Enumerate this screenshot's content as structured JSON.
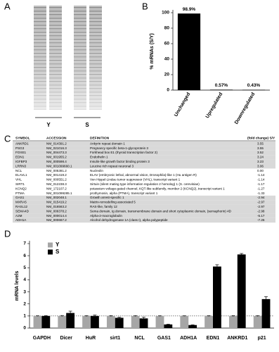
{
  "panel_labels": [
    "A",
    "B",
    "C",
    "D"
  ],
  "gel": {
    "lanes": [
      "Y",
      "S"
    ]
  },
  "chart_data": [
    {
      "type": "bar",
      "y_label": "% mRNAs (S/Y)",
      "categories": [
        "Unchanged",
        "Upregulated",
        "Downregulated"
      ],
      "values": [
        98.9,
        0.57,
        0.43
      ],
      "value_labels": [
        "98.9%",
        "0.57%",
        "0.43%"
      ],
      "color": "#000000",
      "ylim": [
        0,
        100
      ],
      "yticks": [
        0,
        20,
        40,
        60,
        80,
        100
      ]
    },
    {
      "type": "grouped_bar",
      "y_label": "mRNA levels",
      "categories": [
        "GAPDH",
        "Dicer",
        "HuR",
        "sirt1",
        "NCL",
        "GAS1",
        "ADH1A",
        "EDN1",
        "ANKRD1",
        "p21"
      ],
      "series": [
        {
          "name": "Y",
          "color": "#a6a6a6",
          "values": [
            1,
            1,
            1,
            1,
            1,
            1,
            1,
            1,
            1,
            1
          ],
          "errors": [
            0.02,
            0.04,
            0.03,
            0.03,
            0.03,
            0.02,
            0.02,
            0.03,
            0.03,
            0.03
          ]
        },
        {
          "name": "S",
          "color": "#000000",
          "values": [
            1.0,
            1.25,
            1.0,
            0.85,
            0.8,
            0.3,
            0.25,
            5.1,
            6.1,
            2.4
          ],
          "errors": [
            0.03,
            0.15,
            0.08,
            0.05,
            0.1,
            0.02,
            0.02,
            0.15,
            0.08,
            0.2
          ]
        }
      ],
      "ylim": [
        0,
        7
      ],
      "yticks": [
        0,
        1,
        2,
        3,
        4,
        5,
        6,
        7
      ],
      "reference_line": 1,
      "legend": "top-left"
    }
  ],
  "table": {
    "columns": [
      "SYMBOL",
      "ACCESSION",
      "DEFINITION",
      "(fold change) S/Y"
    ],
    "rows": [
      [
        "ANKRD1",
        "NM_014391.2",
        "Ankyrin repeat domain 1",
        "3.55"
      ],
      [
        "PSG3",
        "NM_021016.3",
        "Pregnancy specific beta-1-glycoprotein 3",
        "3.55"
      ],
      [
        "FOXE1",
        "NM_004473.3",
        "Forkhead box E1 (thyroid transcription factor 2)",
        "3.52"
      ],
      [
        "EDN1",
        "NM_001955.2",
        "Endothelin 1",
        "3.24"
      ],
      [
        "IGFBP3",
        "NM_000598.4",
        "Insulin-like growth factor binding protein 3",
        "3.23"
      ],
      [
        "LRRN3",
        "NM_001099660.1",
        "Leucine rich repeat neuronal 3",
        "3.06"
      ],
      [
        "NCL",
        "NM_005381.2",
        "Nucleolin",
        "0.00"
      ],
      [
        "ELAVL1",
        "NM_001419.2",
        "ELAV (embryonic lethal, abnormal vision, Drosophila)-like 1 (Hu antigen R)",
        "-1.14"
      ],
      [
        "VHL",
        "NM_000551.2",
        "Von Hippel-Lindau tumor suppressor (VHL), transcript variant 1",
        "-1.14"
      ],
      [
        "SIRT1",
        "NM_012238.3",
        "Sirtuin (silent mating type information regulation 2 homolog) 1 (S. cerevisiae)",
        "-1.17"
      ],
      [
        "KCNQ2",
        "NM_172107.2",
        "potassium voltage-gated channel, KQT-like subfamily, member 2 (KCNQ2), transcript variant 1",
        "-1.27"
      ],
      [
        "PTMA",
        "NM_001099285.1",
        "prothymosin, alpha (PTMA), transcript variant 1",
        "-1.33"
      ],
      [
        "GAS1",
        "NM_002048.1",
        "Growth arrest-specific 1",
        "-2.94"
      ],
      [
        "MXRA5",
        "NM_015419.2",
        "Matrix-remodelling associated 5",
        "-2.97"
      ],
      [
        "RASL12",
        "NM_016563.2",
        "RAS-like, family 12",
        "-2.97"
      ],
      [
        "SEMA4D",
        "NM_006378.2",
        "Sema domain, Ig domain, transmembrane domain and short cytoplasmic domain, (semaphorin) 4D",
        "-2.98"
      ],
      [
        "A2M",
        "NM_000014.4",
        "Alpha-2-macroglobulin",
        "-5.17"
      ],
      [
        "ADH1A",
        "NM_000667.2",
        "Alcohol dehydrogenase 1A (class I), alpha polypeptide",
        "-7.26"
      ]
    ]
  }
}
